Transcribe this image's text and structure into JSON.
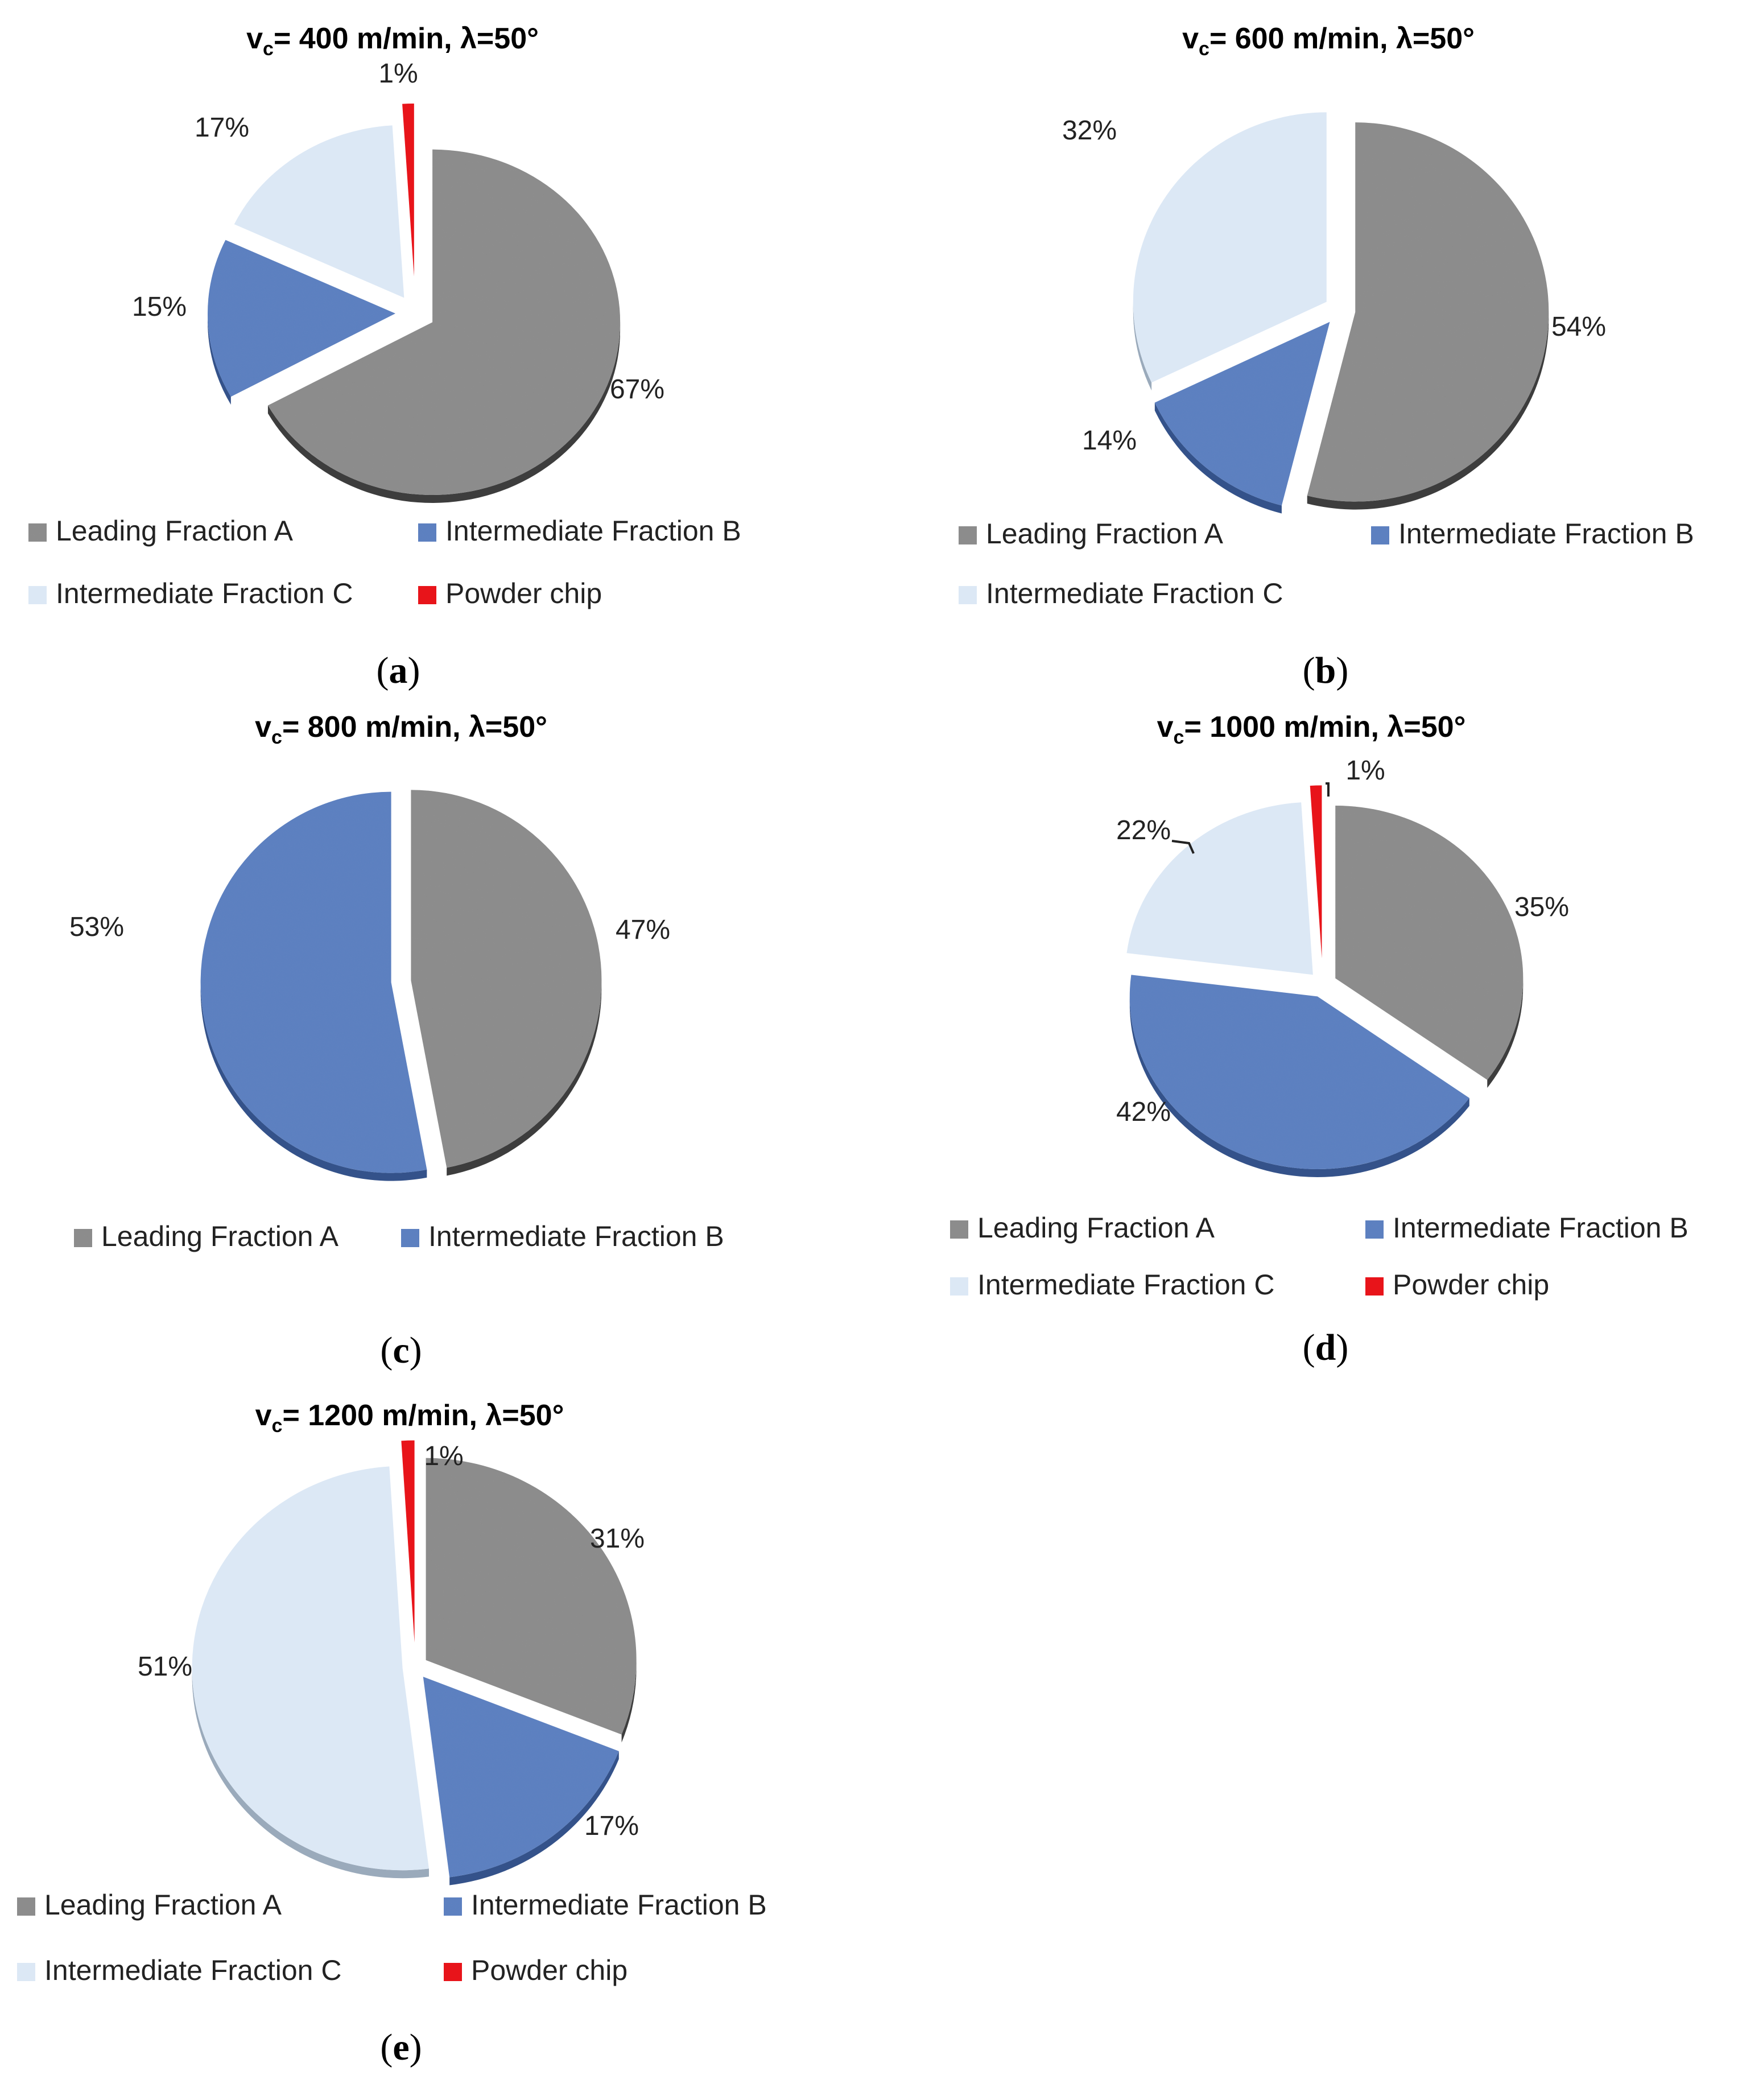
{
  "chart_data": [
    {
      "type": "pie",
      "title": "v",
      "title_sub": "c",
      "title_rest": "= 400 m/min,  λ=50°",
      "caption": "a",
      "labels": [
        "Leading Fraction A",
        "Intermediate Fraction B",
        "Intermediate Fraction C",
        "Powder chip"
      ],
      "values": [
        67,
        15,
        17,
        1
      ],
      "value_labels": [
        "67%",
        "15%",
        "17%",
        "1%"
      ],
      "legend": [
        "Leading Fraction A",
        "Intermediate Fraction B",
        "Intermediate Fraction C",
        "Powder chip"
      ]
    },
    {
      "type": "pie",
      "title": "v",
      "title_sub": "c",
      "title_rest": "= 600 m/min,  λ=50°",
      "caption": "b",
      "labels": [
        "Leading Fraction A",
        "Intermediate Fraction B",
        "Intermediate Fraction C"
      ],
      "values": [
        54,
        14,
        32
      ],
      "value_labels": [
        "54%",
        "14%",
        "32%"
      ],
      "legend": [
        "Leading Fraction A",
        "Intermediate Fraction B",
        "Intermediate Fraction C"
      ]
    },
    {
      "type": "pie",
      "title": "v",
      "title_sub": "c",
      "title_rest": "= 800 m/min,  λ=50°",
      "caption": "c",
      "labels": [
        "Leading Fraction A",
        "Intermediate Fraction B"
      ],
      "values": [
        47,
        53
      ],
      "value_labels": [
        "47%",
        "53%"
      ],
      "legend": [
        "Leading Fraction A",
        "Intermediate Fraction B"
      ]
    },
    {
      "type": "pie",
      "title": "v",
      "title_sub": "c",
      "title_rest": "= 1000 m/min,  λ=50°",
      "caption": "d",
      "labels": [
        "Leading Fraction A",
        "Intermediate Fraction B",
        "Intermediate Fraction C",
        "Powder chip"
      ],
      "values": [
        35,
        42,
        22,
        1
      ],
      "value_labels": [
        "35%",
        "42%",
        "22%",
        "1%"
      ],
      "legend": [
        "Leading Fraction A",
        "Intermediate Fraction B",
        "Intermediate Fraction C",
        "Powder chip"
      ]
    },
    {
      "type": "pie",
      "title": "v",
      "title_sub": "c",
      "title_rest": "= 1200 m/min,  λ=50°",
      "caption": "e",
      "labels": [
        "Leading Fraction A",
        "Intermediate Fraction B",
        "Intermediate Fraction C",
        "Powder chip"
      ],
      "values": [
        31,
        17,
        51,
        1
      ],
      "value_labels": [
        "31%",
        "17%",
        "51%",
        "1%"
      ],
      "legend": [
        "Leading Fraction A",
        "Intermediate Fraction B",
        "Intermediate Fraction C",
        "Powder chip"
      ]
    }
  ],
  "colors": {
    "Leading Fraction A": "#8e8e8e",
    "Intermediate Fraction B": "#5a7fbf",
    "Intermediate Fraction C": "#dce8f5",
    "Powder chip": "#e8141a"
  }
}
